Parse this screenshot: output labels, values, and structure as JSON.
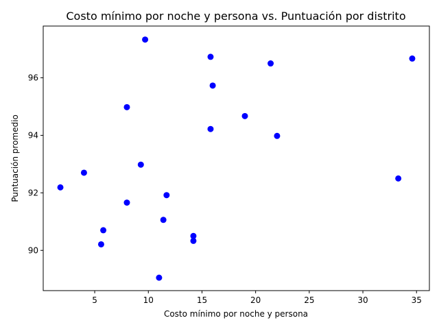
{
  "chart_data": {
    "type": "scatter",
    "title": "Costo mínimo por noche y persona vs. Puntuación por distrito",
    "xlabel": "Costo mínimo por noche y persona",
    "ylabel": "Puntuación promedio",
    "xlim": [
      0.2,
      36.2
    ],
    "ylim": [
      88.6,
      97.8
    ],
    "xticks": [
      5,
      10,
      15,
      20,
      25,
      30,
      35
    ],
    "yticks": [
      90,
      92,
      94,
      96
    ],
    "grid": false,
    "marker_color": "#0000ff",
    "points": [
      {
        "x": 9.7,
        "y": 97.33
      },
      {
        "x": 15.8,
        "y": 96.73
      },
      {
        "x": 34.6,
        "y": 96.67
      },
      {
        "x": 21.4,
        "y": 96.5
      },
      {
        "x": 16.0,
        "y": 95.73
      },
      {
        "x": 8.0,
        "y": 94.98
      },
      {
        "x": 19.0,
        "y": 94.67
      },
      {
        "x": 15.8,
        "y": 94.22
      },
      {
        "x": 22.0,
        "y": 93.98
      },
      {
        "x": 9.3,
        "y": 92.98
      },
      {
        "x": 4.0,
        "y": 92.7
      },
      {
        "x": 33.3,
        "y": 92.5
      },
      {
        "x": 1.8,
        "y": 92.19
      },
      {
        "x": 11.7,
        "y": 91.92
      },
      {
        "x": 8.0,
        "y": 91.66
      },
      {
        "x": 11.4,
        "y": 91.06
      },
      {
        "x": 5.8,
        "y": 90.7
      },
      {
        "x": 14.2,
        "y": 90.5
      },
      {
        "x": 14.2,
        "y": 90.33
      },
      {
        "x": 5.6,
        "y": 90.21
      },
      {
        "x": 11.0,
        "y": 89.05
      }
    ]
  }
}
